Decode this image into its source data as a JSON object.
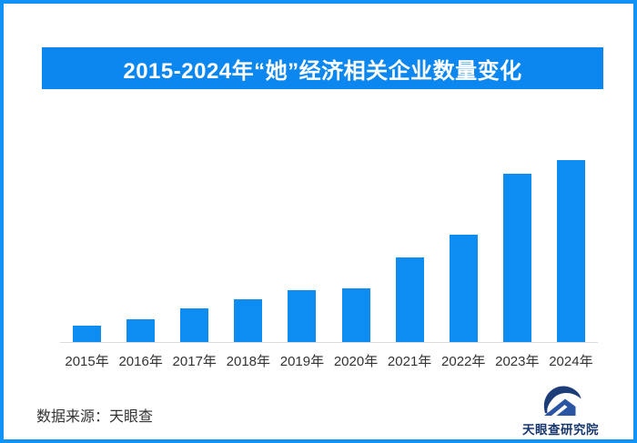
{
  "frame": {
    "border_color": "#1192f5",
    "background": "#ffffff"
  },
  "header": {
    "title": "2015-2024年“她”经济相关企业数量变化",
    "background": "#0c87f0",
    "text_color": "#ffffff"
  },
  "chart_data": {
    "type": "bar",
    "title": "2015-2024年“她”经济相关企业数量变化",
    "categories": [
      "2015年",
      "2016年",
      "2017年",
      "2018年",
      "2019年",
      "2020年",
      "2021年",
      "2022年",
      "2023年",
      "2024年"
    ],
    "values": [
      9.5,
      13,
      19,
      24,
      29,
      30,
      47,
      59,
      92.5,
      100
    ],
    "unit": "relative index (no y-axis value labels shown; 2024 = 100)",
    "xlabel": "",
    "ylabel": "",
    "ylim": [
      0,
      102
    ],
    "grid": false,
    "legend": false,
    "y_axis_visible": false,
    "bar_color": "#0d8cf2",
    "axis_line_color": "#dcdcdc",
    "tick_label_color": "#333333"
  },
  "footer": {
    "source_label": "数据来源：天眼查",
    "source_color": "#333333",
    "logo": {
      "name": "天眼查研究院",
      "arc_color": "#1d3d79",
      "roof_color": "#2a55a2",
      "stripe_color": "#ffffff",
      "text_color": "#17376d"
    }
  }
}
